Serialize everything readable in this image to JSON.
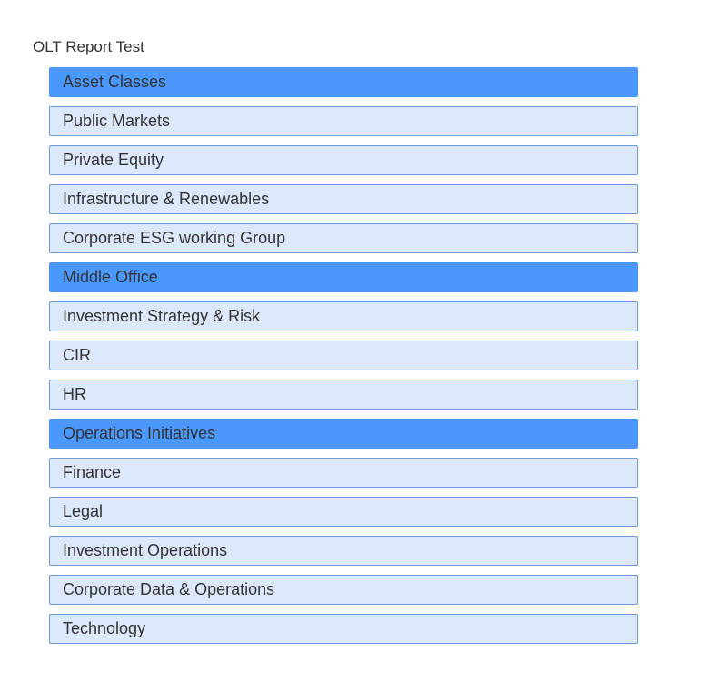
{
  "title": "OLT Report Test",
  "colors": {
    "header": "#4a98fc",
    "item": "#dce8fb",
    "border": "#6b9be0"
  },
  "items": [
    {
      "label": "Asset Classes",
      "header": true
    },
    {
      "label": "Public Markets",
      "header": false
    },
    {
      "label": "Private Equity",
      "header": false
    },
    {
      "label": "Infrastructure & Renewables",
      "header": false
    },
    {
      "label": "Corporate ESG working Group",
      "header": false
    },
    {
      "label": "Middle Office",
      "header": true
    },
    {
      "label": "Investment Strategy & Risk",
      "header": false
    },
    {
      "label": "CIR",
      "header": false
    },
    {
      "label": "HR",
      "header": false
    },
    {
      "label": "Operations Initiatives",
      "header": true
    },
    {
      "label": "Finance",
      "header": false
    },
    {
      "label": "Legal",
      "header": false
    },
    {
      "label": "Investment Operations",
      "header": false
    },
    {
      "label": "Corporate Data & Operations",
      "header": false
    },
    {
      "label": "Technology",
      "header": false
    }
  ]
}
